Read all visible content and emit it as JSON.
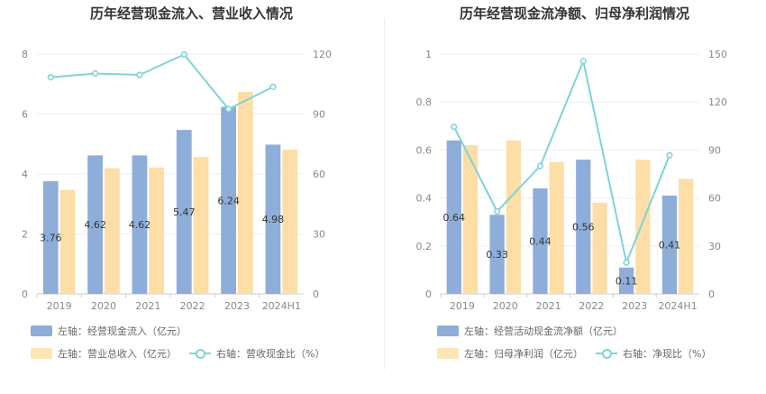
{
  "colors": {
    "bar_primary": "#8eadd9",
    "bar_secondary": "#fcdea6",
    "line": "#7fd3d8"
  },
  "chart_data": [
    {
      "type": "bar",
      "title": "历年经营现金流入、营业收入情况",
      "categories": [
        "2019",
        "2020",
        "2021",
        "2022",
        "2023",
        "2024H1"
      ],
      "series": [
        {
          "name": "左轴：经营现金流入（亿元）",
          "axis": "left",
          "values": [
            3.76,
            4.62,
            4.62,
            5.47,
            6.24,
            4.98
          ],
          "labels": [
            "3.76",
            "4.62",
            "4.62",
            "5.47",
            "6.24",
            "4.98"
          ]
        },
        {
          "name": "左轴：营业总收入（亿元）",
          "axis": "left",
          "values": [
            3.47,
            4.19,
            4.22,
            4.57,
            6.74,
            4.81
          ]
        },
        {
          "name": "右轴：营收现金比（%）",
          "axis": "right",
          "type": "line",
          "values": [
            108.4,
            110.3,
            109.6,
            119.8,
            92.5,
            103.6
          ]
        }
      ],
      "ylim_left": [
        0,
        8
      ],
      "ylim_right": [
        0,
        120
      ],
      "yticks_left": [
        "0",
        "2",
        "4",
        "6",
        "8"
      ],
      "yticks_right": [
        "0",
        "30",
        "60",
        "90",
        "120"
      ]
    },
    {
      "type": "bar",
      "title": "历年经营现金流净额、归母净利润情况",
      "categories": [
        "2019",
        "2020",
        "2021",
        "2022",
        "2023",
        "2024H1"
      ],
      "series": [
        {
          "name": "左轴：经营活动现金流净额（亿元）",
          "axis": "left",
          "values": [
            0.64,
            0.33,
            0.44,
            0.56,
            0.11,
            0.41
          ],
          "labels": [
            "0.64",
            "0.33",
            "0.44",
            "0.56",
            "0.11",
            "0.41"
          ]
        },
        {
          "name": "左轴：归母净利润（亿元）",
          "axis": "left",
          "values": [
            0.62,
            0.64,
            0.55,
            0.38,
            0.56,
            0.48
          ]
        },
        {
          "name": "右轴：净现比（%）",
          "axis": "right",
          "type": "line",
          "values": [
            104.5,
            51.6,
            80.0,
            145.6,
            19.6,
            86.7
          ]
        }
      ],
      "ylim_left": [
        0,
        1
      ],
      "ylim_right": [
        0,
        150
      ],
      "yticks_left": [
        "0",
        "0.2",
        "0.4",
        "0.6",
        "0.8",
        "1"
      ],
      "yticks_right": [
        "0",
        "30",
        "60",
        "90",
        "120",
        "150"
      ]
    }
  ]
}
